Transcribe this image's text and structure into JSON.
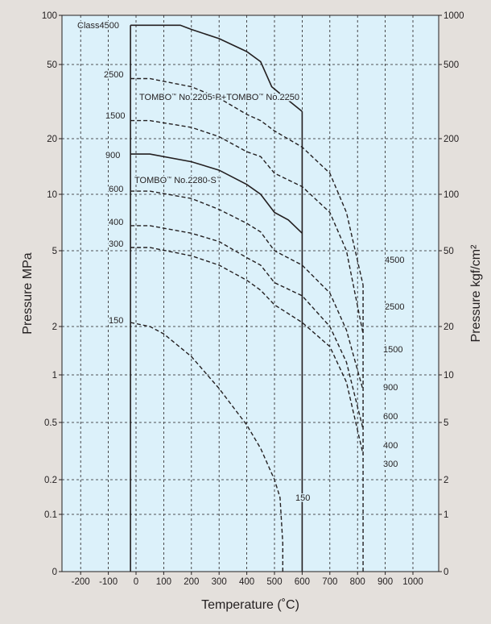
{
  "chart_data": {
    "type": "line",
    "title": "",
    "xlabel": "Temperature (˚C)",
    "ylabel_left": "Pressure MPa",
    "ylabel_right": "Pressure kgf/cm²",
    "xlim": [
      -220,
      1000
    ],
    "x_ticks": [
      -200,
      -100,
      0,
      100,
      200,
      300,
      400,
      500,
      600,
      700,
      800,
      900,
      1000
    ],
    "y_ticks_left": [
      "0",
      "0.1",
      "0.2",
      "0.5",
      "1",
      "2",
      "5",
      "10",
      "20",
      "50",
      "100"
    ],
    "y_ticks_right": [
      "0",
      "1",
      "2",
      "5",
      "10",
      "20",
      "50",
      "100",
      "200",
      "500",
      "1000"
    ],
    "grid": true,
    "colors": {
      "plot_background": "#dcf1fa",
      "frame": "#231f20",
      "page_background": "#e4e0dc"
    },
    "series": [
      {
        "name": "Class4500",
        "label_text": "Class4500",
        "style": "solid",
        "points": [
          [
            -20,
            87
          ],
          [
            160,
            87
          ],
          [
            200,
            82
          ],
          [
            300,
            72
          ],
          [
            400,
            60
          ],
          [
            450,
            52
          ],
          [
            490,
            38
          ],
          [
            540,
            33
          ],
          [
            600,
            28
          ]
        ]
      },
      {
        "name": "2500",
        "label_text": "2500",
        "style": "dashed",
        "points": [
          [
            -20,
            42
          ],
          [
            50,
            42
          ],
          [
            200,
            38
          ],
          [
            300,
            33
          ],
          [
            400,
            27
          ],
          [
            450,
            25
          ],
          [
            500,
            22
          ],
          [
            600,
            18
          ],
          [
            700,
            13
          ],
          [
            760,
            8
          ],
          [
            820,
            3.3
          ]
        ]
      },
      {
        "name": "1500",
        "label_text": "1500",
        "style": "dashed",
        "points": [
          [
            -20,
            25
          ],
          [
            50,
            25
          ],
          [
            200,
            23
          ],
          [
            300,
            20.5
          ],
          [
            400,
            17
          ],
          [
            450,
            16
          ],
          [
            500,
            13
          ],
          [
            600,
            11
          ],
          [
            700,
            8
          ],
          [
            760,
            5
          ],
          [
            820,
            1.8
          ]
        ]
      },
      {
        "name": "900",
        "label_text": "900",
        "style": "solid",
        "points": [
          [
            -20,
            16.5
          ],
          [
            50,
            16.5
          ],
          [
            200,
            15
          ],
          [
            300,
            13.5
          ],
          [
            400,
            11.3
          ],
          [
            450,
            10
          ],
          [
            500,
            8
          ],
          [
            550,
            7.3
          ],
          [
            600,
            6.2
          ]
        ]
      },
      {
        "name": "600",
        "label_text": "600",
        "style": "dashed",
        "points": [
          [
            -20,
            10.4
          ],
          [
            50,
            10.4
          ],
          [
            200,
            9.5
          ],
          [
            300,
            8.3
          ],
          [
            400,
            7
          ],
          [
            450,
            6.3
          ],
          [
            500,
            5
          ],
          [
            600,
            4.2
          ],
          [
            700,
            3
          ],
          [
            760,
            1.9
          ],
          [
            820,
            0.8
          ]
        ]
      },
      {
        "name": "400",
        "label_text": "400",
        "style": "dashed",
        "points": [
          [
            -20,
            6.8
          ],
          [
            50,
            6.8
          ],
          [
            200,
            6.2
          ],
          [
            300,
            5.6
          ],
          [
            400,
            4.6
          ],
          [
            450,
            4.2
          ],
          [
            500,
            3.4
          ],
          [
            600,
            2.9
          ],
          [
            700,
            2
          ],
          [
            760,
            1.2
          ],
          [
            820,
            0.45
          ]
        ]
      },
      {
        "name": "300",
        "label_text": "300",
        "style": "dashed",
        "points": [
          [
            -20,
            5.2
          ],
          [
            50,
            5.2
          ],
          [
            200,
            4.7
          ],
          [
            300,
            4.2
          ],
          [
            400,
            3.5
          ],
          [
            450,
            3.1
          ],
          [
            500,
            2.6
          ],
          [
            600,
            2.1
          ],
          [
            700,
            1.5
          ],
          [
            760,
            0.9
          ],
          [
            820,
            0.3
          ]
        ]
      },
      {
        "name": "150",
        "label_text": "150",
        "style": "dashed",
        "points": [
          [
            -20,
            2.1
          ],
          [
            50,
            2.0
          ],
          [
            100,
            1.8
          ],
          [
            200,
            1.3
          ],
          [
            300,
            0.82
          ],
          [
            400,
            0.48
          ],
          [
            450,
            0.33
          ],
          [
            500,
            0.2
          ],
          [
            520,
            0.14
          ],
          [
            530,
            0.05
          ]
        ]
      }
    ],
    "temperature_limits": [
      {
        "x": -20,
        "style": "solid"
      },
      {
        "x": 600,
        "style": "solid"
      },
      {
        "x": 530,
        "style": "dashed"
      },
      {
        "x": 820,
        "style": "dashed"
      }
    ],
    "annotations": [
      {
        "text": "TOMBO",
        "tm": "™",
        "text2": " No.2205-P+TOMBO",
        "text3": " No.2250"
      },
      {
        "text": "TOMBO",
        "tm": "™",
        "text2": " No.2280-S"
      }
    ],
    "end_labels": [
      "4500",
      "2500",
      "1500",
      "900",
      "600",
      "400",
      "300",
      "150"
    ]
  }
}
